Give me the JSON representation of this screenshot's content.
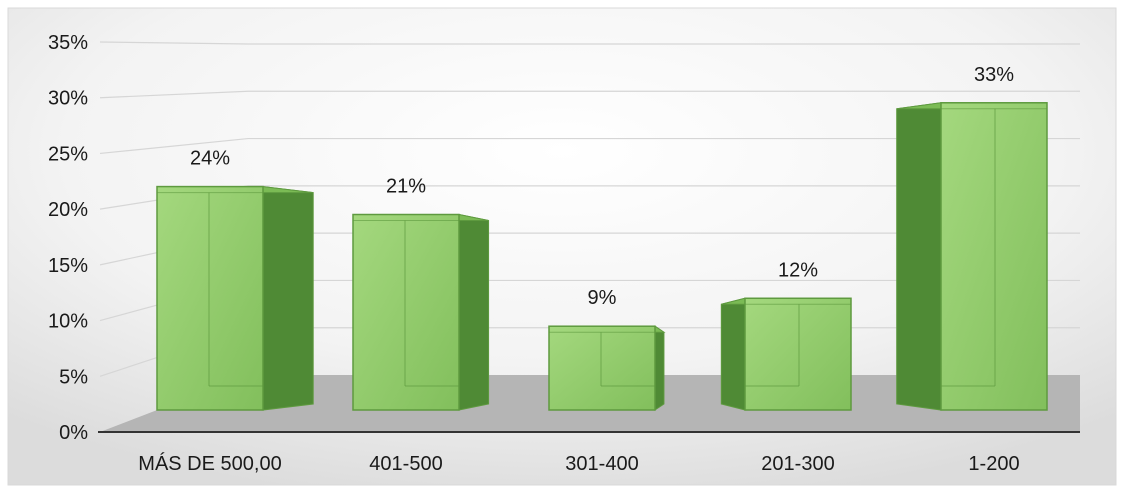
{
  "chart_data": {
    "type": "bar",
    "categories": [
      "MÁS DE 500,00",
      "401-500",
      "301-400",
      "201-300",
      "1-200"
    ],
    "values": [
      24,
      21,
      9,
      12,
      33
    ],
    "data_labels": [
      "24%",
      "21%",
      "9%",
      "12%",
      "33%"
    ],
    "y_ticks": [
      "0%",
      "5%",
      "10%",
      "15%",
      "20%",
      "25%",
      "30%",
      "35%"
    ],
    "ylim": [
      0,
      35
    ],
    "y_step": 5,
    "grid": true,
    "legend": "none",
    "style": "3d-column",
    "colors": {
      "bar_front": "#8cc865",
      "bar_front_light": "#a4d87e",
      "bar_side": "#4f8a35",
      "bar_top": "#7bbb55",
      "bar_edge": "#5e9a3f",
      "floor": "#b5b5b5",
      "grid": "#d6d6d6",
      "axis": "#333333"
    }
  }
}
